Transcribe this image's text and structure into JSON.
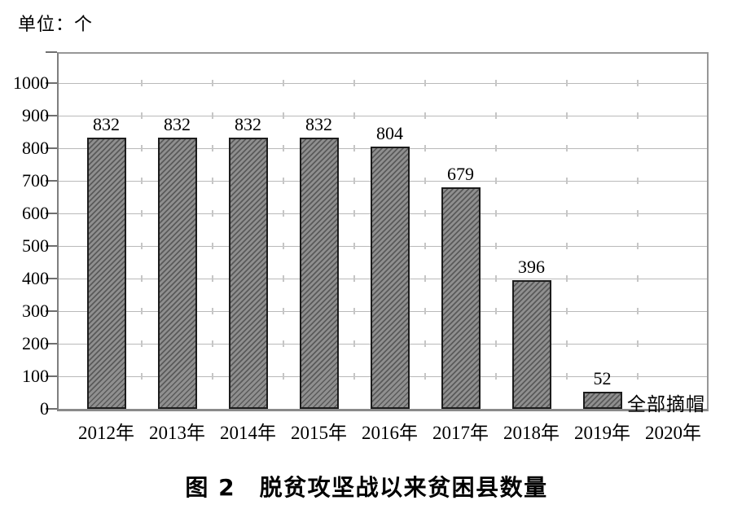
{
  "chart_data": {
    "type": "bar",
    "title": "图 2　脱贫攻坚战以来贫困县数量",
    "unit_label": "单位：个",
    "categories": [
      "2012年",
      "2013年",
      "2014年",
      "2015年",
      "2016年",
      "2017年",
      "2018年",
      "2019年",
      "2020年"
    ],
    "values": [
      832,
      832,
      832,
      832,
      804,
      679,
      396,
      52,
      null
    ],
    "bar_value_labels": [
      "832",
      "832",
      "832",
      "832",
      "804",
      "679",
      "396",
      "52",
      ""
    ],
    "annotation": {
      "text": "全部摘帽",
      "category": "2020年"
    },
    "ylim": [
      0,
      1100
    ],
    "ytick_step": 100,
    "yticks": [
      0,
      100,
      200,
      300,
      400,
      500,
      600,
      700,
      800,
      900,
      1000
    ],
    "grid": "horizontal",
    "legend": "none",
    "xlabel": "",
    "ylabel": "",
    "colors": {
      "bar_fill": "#8f8f8f",
      "bar_hatch": "#5a5a5a",
      "bar_border": "#1c1c1c",
      "gridline": "#b9b9b9",
      "frame": "#8a8a8a",
      "tick": "#6f6f6f",
      "text": "#000000",
      "background": "#ffffff"
    }
  }
}
